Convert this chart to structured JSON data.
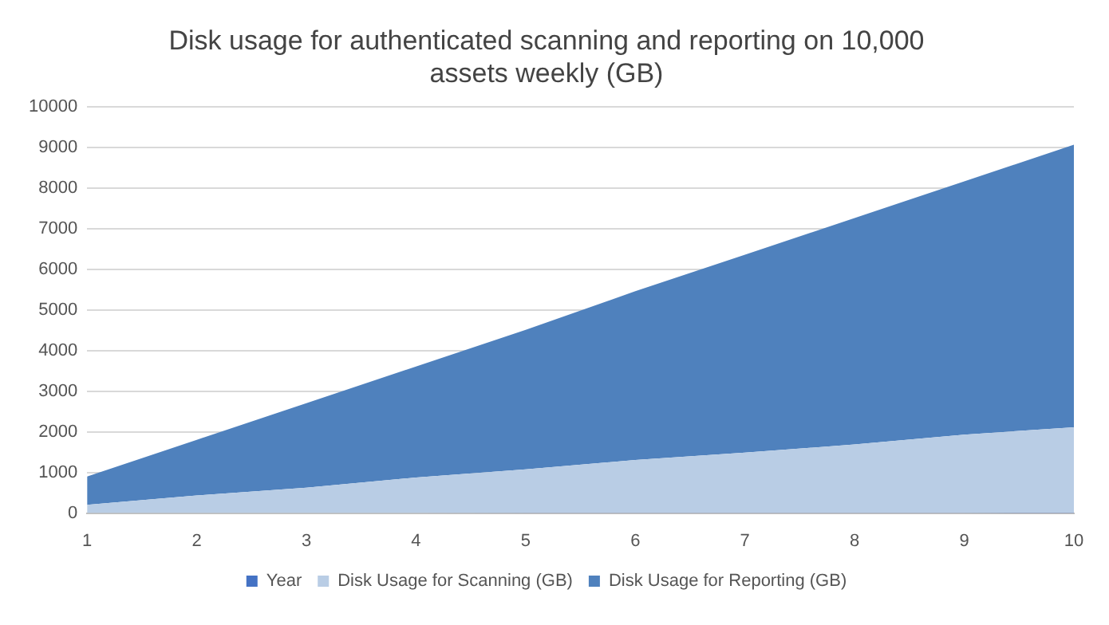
{
  "chart_data": {
    "type": "area",
    "title": "Disk usage for authenticated scanning and reporting on 10,000 assets weekly (GB)",
    "categories": [
      "1",
      "2",
      "3",
      "4",
      "5",
      "6",
      "7",
      "8",
      "9",
      "10"
    ],
    "stacked": true,
    "series": [
      {
        "name": "Year",
        "color": "#4472c4",
        "values": [
          1,
          2,
          3,
          4,
          5,
          6,
          7,
          8,
          9,
          10
        ]
      },
      {
        "name": "Disk Usage for Scanning (GB)",
        "color": "#b9cde5",
        "values": [
          200,
          430,
          620,
          870,
          1070,
          1300,
          1480,
          1680,
          1920,
          2100
        ]
      },
      {
        "name": "Disk Usage for Reporting (GB)",
        "color": "#4f81bd",
        "values": [
          700,
          1370,
          2080,
          2730,
          3430,
          4150,
          4870,
          5570,
          6230,
          6950
        ]
      }
    ],
    "ylim": [
      0,
      10000
    ],
    "yticks": [
      0,
      1000,
      2000,
      3000,
      4000,
      5000,
      6000,
      7000,
      8000,
      9000,
      10000
    ],
    "grid": "y",
    "legend": "bottom"
  }
}
